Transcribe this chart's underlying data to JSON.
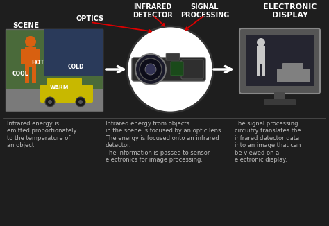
{
  "bg_color": "#1e1e1e",
  "body_text_color": "#bbbbbb",
  "labels": {
    "scene": "SCENE",
    "optics": "OPTICS",
    "infrared_detector": "INFRARED\nDETECTOR",
    "signal_processing": "SIGNAL\nPROCESSING",
    "electronic_display": "ELECTRONIC\nDISPLAY"
  },
  "descriptions": {
    "scene": "Infrared energy is\nemitted proportionately\nto the temperature of\nan object.",
    "optics": "Infrared energy from objects\nin the scene is focused by an optic lens.\nThe energy is focused onto an infrared\ndetector.\nThe information is passed to sensor\nelectronics for image processing.",
    "display": "The signal processing\ncircuitry translates the\ninfrared detector data\ninto an image that can\nbe viewed on a\nelectronic display."
  },
  "scene_labels": [
    "COOL",
    "HOT",
    "COLD",
    "WARM"
  ],
  "scene_colors": {
    "bg_green": "#4a6a3a",
    "bg_blue": "#2a3a5a",
    "ground": "#7a7a7a",
    "person": "#d86010",
    "car": "#c8b800"
  }
}
